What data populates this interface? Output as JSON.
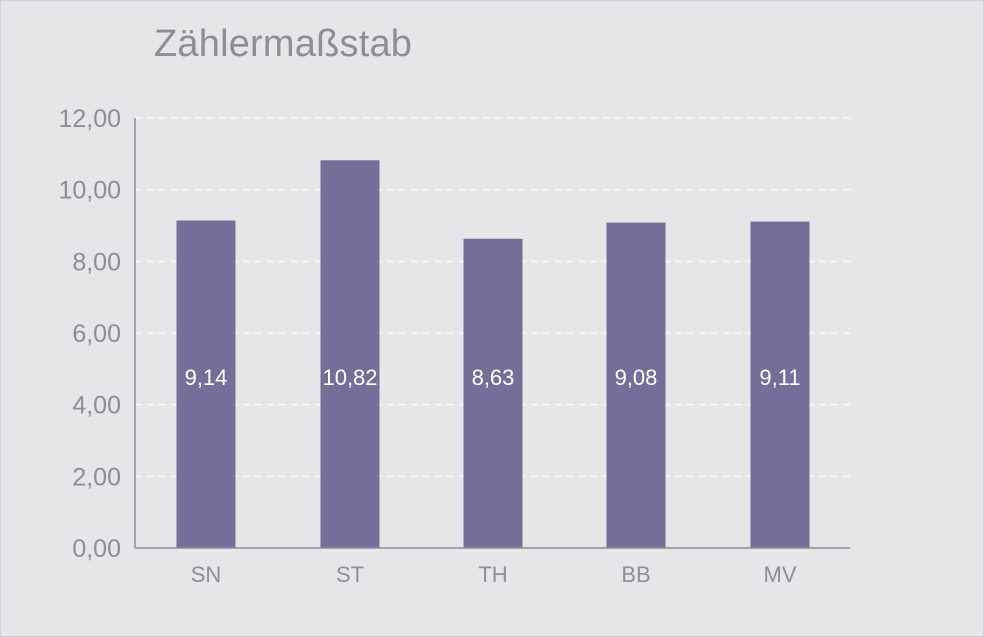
{
  "chart_data": {
    "type": "bar",
    "title": "Zählermaßstab",
    "categories": [
      "SN",
      "ST",
      "TH",
      "BB",
      "MV"
    ],
    "values": [
      9.14,
      10.82,
      8.63,
      9.08,
      9.11
    ],
    "value_labels": [
      "9,14",
      "10,82",
      "8,63",
      "9,08",
      "9,11"
    ],
    "y_ticks": [
      "0,00",
      "2,00",
      "4,00",
      "6,00",
      "8,00",
      "10,00",
      "12,00"
    ],
    "ylim": [
      0,
      12
    ],
    "grid": true,
    "legend": "none",
    "colors": {
      "bar": "#746f98",
      "background": "#e6e6e8",
      "grid": "#ffffff",
      "axis": "#8e8e93",
      "text": "#8e8e93",
      "data_label": "#ffffff"
    }
  }
}
